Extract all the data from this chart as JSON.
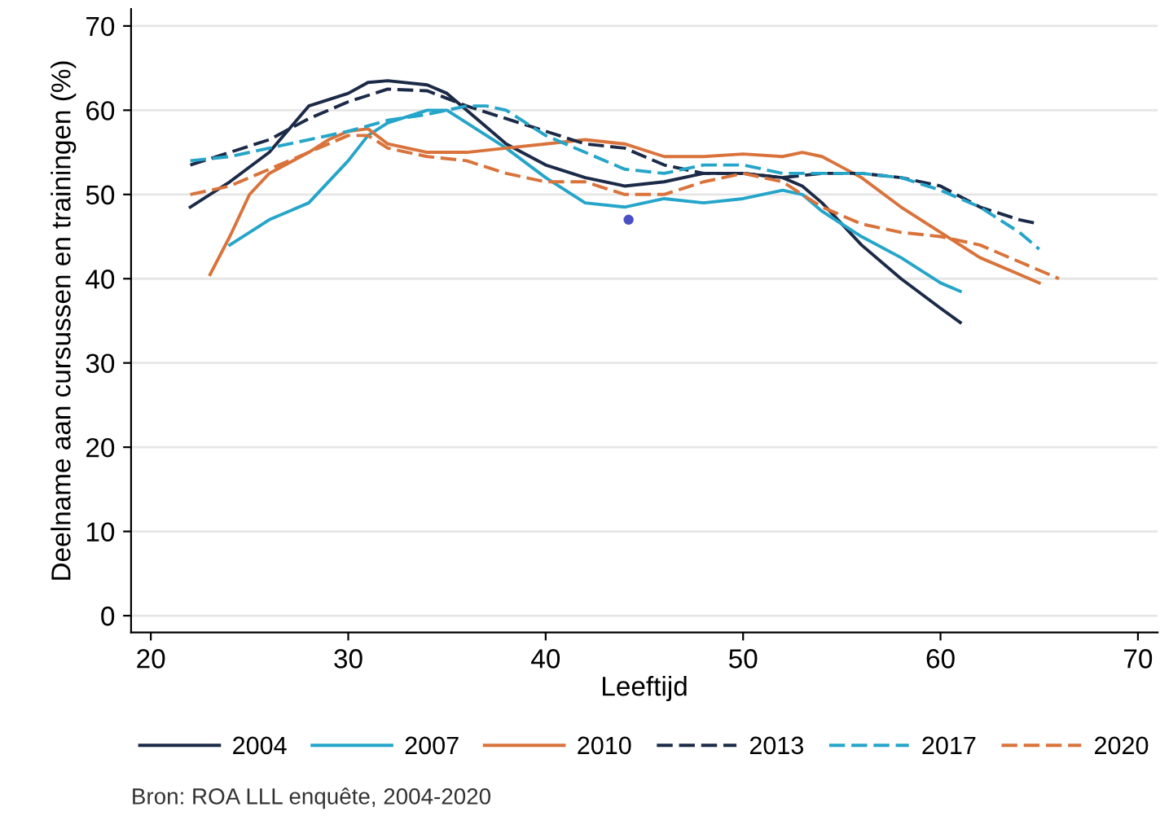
{
  "chart_data": {
    "type": "line",
    "xlabel": "Leeftijd",
    "ylabel": "Deelname aan cursussen en trainingen (%)",
    "xlim": [
      19,
      71
    ],
    "xticks": [
      20,
      30,
      40,
      50,
      60,
      70
    ],
    "ylim": [
      -2,
      72
    ],
    "yticks": [
      0,
      10,
      20,
      30,
      40,
      50,
      60,
      70
    ],
    "grid": "y",
    "legend": "bottom",
    "marker": "none",
    "annotations": [
      "Bron: ROA LLL enquête, 2004-2020"
    ],
    "series": [
      {
        "name": "2004",
        "color": "#1b2a47",
        "line_style": "solid",
        "x": [
          22,
          24,
          26,
          28,
          30,
          31,
          32,
          34,
          35,
          37,
          38,
          40,
          42,
          44,
          46,
          48,
          50,
          52,
          53,
          54,
          56,
          58,
          60,
          61
        ],
        "values": [
          48.5,
          51.5,
          55,
          60.5,
          62,
          63.3,
          63.5,
          63,
          62,
          58,
          56,
          53.5,
          52,
          51,
          51.5,
          52.5,
          52.5,
          52,
          51,
          49,
          44,
          40,
          36.5,
          34.8
        ]
      },
      {
        "name": "2007",
        "color": "#25a5c9",
        "line_style": "solid",
        "x": [
          24,
          26,
          27,
          28,
          30,
          31,
          32,
          34,
          35,
          36,
          38,
          40,
          42,
          44,
          45,
          46,
          48,
          50,
          52,
          53,
          54,
          56,
          58,
          60,
          61
        ],
        "values": [
          44,
          47,
          48,
          49,
          54,
          57,
          58.5,
          60,
          60,
          58.5,
          55.5,
          52,
          49,
          48.5,
          49,
          49.5,
          49,
          49.5,
          50.5,
          50,
          48,
          45,
          42.5,
          39.5,
          38.5
        ]
      },
      {
        "name": "2010",
        "color": "#d9733b",
        "line_style": "solid",
        "x": [
          23,
          24,
          25,
          26,
          28,
          29,
          30,
          31,
          32,
          34,
          36,
          38,
          40,
          42,
          44,
          46,
          48,
          50,
          52,
          53,
          54,
          56,
          58,
          60,
          62,
          64,
          65
        ],
        "values": [
          40.5,
          45,
          50,
          52.5,
          55,
          56.5,
          57.5,
          57.8,
          56,
          55,
          55,
          55.5,
          56,
          56.5,
          56,
          54.5,
          54.5,
          54.8,
          54.5,
          55,
          54.5,
          52,
          48.5,
          45.5,
          42.5,
          40.5,
          39.5
        ]
      },
      {
        "name": "2013",
        "color": "#1b2a47",
        "line_style": "dashed",
        "x": [
          22,
          24,
          26,
          28,
          30,
          32,
          34,
          36,
          38,
          40,
          42,
          44,
          46,
          48,
          50,
          52,
          54,
          56,
          58,
          60,
          62,
          64,
          65
        ],
        "values": [
          53.5,
          55,
          56.5,
          59,
          61,
          62.5,
          62.3,
          60.5,
          59,
          57.5,
          56,
          55.5,
          53.5,
          52.5,
          52.5,
          52,
          52.5,
          52.5,
          52,
          51,
          48.5,
          47,
          46.5
        ]
      },
      {
        "name": "2017",
        "color": "#25a5c9",
        "line_style": "dashed",
        "x": [
          22,
          24,
          26,
          28,
          30,
          32,
          34,
          36,
          37,
          38,
          40,
          42,
          44,
          46,
          48,
          50,
          52,
          54,
          56,
          58,
          60,
          62,
          64,
          65
        ],
        "values": [
          54,
          54.5,
          55.5,
          56.5,
          57.5,
          58.8,
          59.5,
          60.5,
          60.5,
          60,
          57,
          55,
          53,
          52.5,
          53.5,
          53.5,
          52.5,
          52.5,
          52.5,
          52,
          50.5,
          48.5,
          45.5,
          43.5
        ]
      },
      {
        "name": "2020",
        "color": "#d9733b",
        "line_style": "dashed",
        "x": [
          22,
          24,
          26,
          28,
          30,
          31,
          32,
          34,
          36,
          38,
          40,
          42,
          44,
          46,
          48,
          50,
          52,
          54,
          56,
          58,
          60,
          62,
          64,
          66
        ],
        "values": [
          50,
          51,
          53,
          55,
          57,
          57,
          55.5,
          54.5,
          54,
          52.5,
          51.5,
          51.5,
          50,
          50,
          51.5,
          52.5,
          51.5,
          48.5,
          46.5,
          45.5,
          45,
          44,
          42,
          40
        ]
      },
      {
        "type": "scatter",
        "color": "#4a4fc4",
        "marker": "circle",
        "x": [
          44.2
        ],
        "values": [
          47
        ]
      }
    ]
  }
}
